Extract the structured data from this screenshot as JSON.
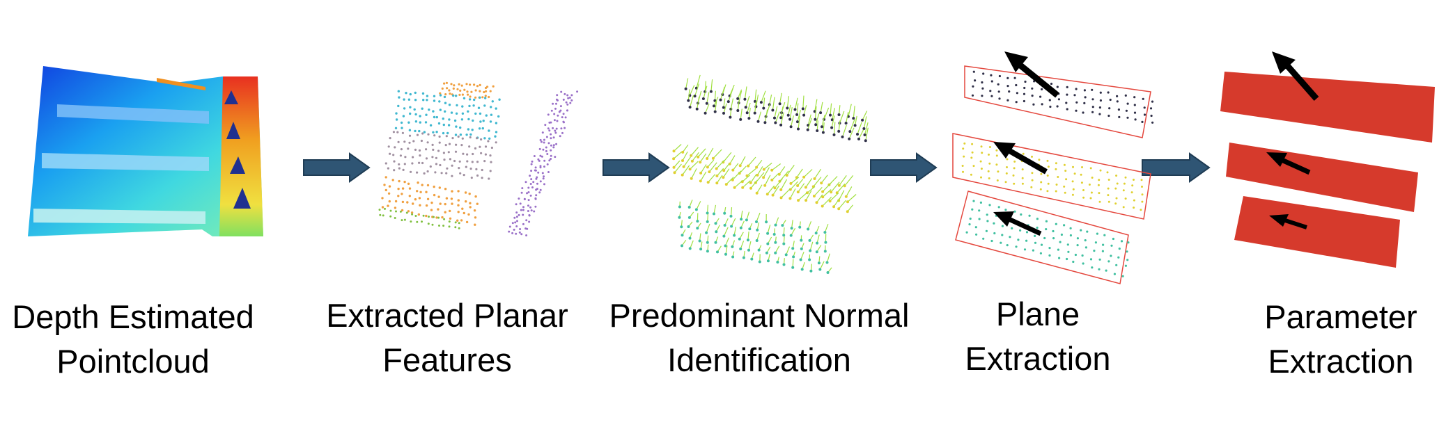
{
  "title": "",
  "stages": [
    {
      "id": "depth",
      "lines": [
        "Depth Estimated",
        "Pointcloud"
      ]
    },
    {
      "id": "planar",
      "lines": [
        "Extracted Planar",
        "Features"
      ]
    },
    {
      "id": "normal",
      "lines": [
        "Predominant Normal",
        "Identification"
      ]
    },
    {
      "id": "plane",
      "lines": [
        "Plane",
        "Extraction"
      ]
    },
    {
      "id": "param",
      "lines": [
        "Parameter",
        "Extraction"
      ]
    }
  ],
  "colors": {
    "arrow_fill": "#2f5574",
    "plane_fill": "#d63a2c",
    "bbox_stroke": "#e4473d",
    "normal_arrow": "#000000",
    "orange_points": "#f0a040",
    "cyan_points": "#40b8d0",
    "gray_points": "#a090a0",
    "purple_points": "#9a70c8",
    "green_points": "#80c040",
    "teal_points": "#40c0a0",
    "yellow_points": "#e0d030",
    "dark_points": "#303048",
    "normal_lines": "#a0e040"
  }
}
